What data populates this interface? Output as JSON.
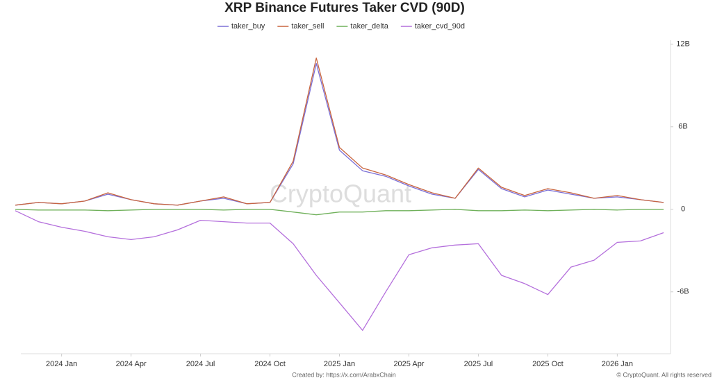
{
  "chart_data": {
    "type": "line",
    "title": "XRP Binance Futures Taker CVD (90D)",
    "watermark": "CryptoQuant",
    "credit": "Created by: https://x.com/ArabxChain",
    "copyright": "© CryptoQuant. All rights reserved",
    "x": [
      "2023-11",
      "2023-12",
      "2024-01",
      "2024-02",
      "2024-03",
      "2024-04",
      "2024-05",
      "2024-06",
      "2024-07",
      "2024-08",
      "2024-09",
      "2024-10",
      "2024-11",
      "2024-12",
      "2025-01",
      "2025-02",
      "2025-03",
      "2025-04",
      "2025-05",
      "2025-06",
      "2025-07",
      "2025-08",
      "2025-09",
      "2025-10",
      "2025-11",
      "2025-12",
      "2026-01",
      "2026-02",
      "2026-03"
    ],
    "xlim": [
      "2023-11",
      "2026-03"
    ],
    "xticks": [
      {
        "value": "2024-01",
        "label": "2024 Jan"
      },
      {
        "value": "2024-04",
        "label": "2024 Apr"
      },
      {
        "value": "2024-07",
        "label": "2024 Jul"
      },
      {
        "value": "2024-10",
        "label": "2024 Oct"
      },
      {
        "value": "2025-01",
        "label": "2025 Jan"
      },
      {
        "value": "2025-04",
        "label": "2025 Apr"
      },
      {
        "value": "2025-07",
        "label": "2025 Jul"
      },
      {
        "value": "2025-10",
        "label": "2025 Oct"
      },
      {
        "value": "2026-01",
        "label": "2026 Jan"
      }
    ],
    "ylim": [
      -10.5,
      13.2
    ],
    "yticks": [
      {
        "value": 12,
        "label": "12B"
      },
      {
        "value": 6,
        "label": "6B"
      },
      0,
      {
        "value": -6,
        "label": "-6B"
      }
    ],
    "series": [
      {
        "name": "taker_buy",
        "color": "#7b6fd6",
        "values": [
          0.3,
          0.5,
          0.4,
          0.6,
          1.1,
          0.7,
          0.4,
          0.3,
          0.6,
          0.8,
          0.4,
          0.5,
          3.3,
          10.6,
          4.3,
          2.8,
          2.4,
          1.7,
          1.1,
          0.8,
          2.9,
          1.5,
          0.9,
          1.4,
          1.1,
          0.8,
          0.9,
          0.7,
          0.5
        ]
      },
      {
        "name": "taker_sell",
        "color": "#c8653f",
        "values": [
          0.3,
          0.5,
          0.4,
          0.6,
          1.2,
          0.7,
          0.4,
          0.3,
          0.6,
          0.9,
          0.4,
          0.5,
          3.5,
          11.0,
          4.5,
          3.0,
          2.5,
          1.8,
          1.2,
          0.8,
          3.0,
          1.6,
          1.0,
          1.5,
          1.2,
          0.8,
          1.0,
          0.7,
          0.5
        ]
      },
      {
        "name": "taker_delta",
        "color": "#6fb05a",
        "values": [
          0,
          -0.05,
          -0.05,
          -0.05,
          -0.1,
          -0.05,
          0,
          0,
          0,
          -0.05,
          0,
          0,
          -0.2,
          -0.4,
          -0.2,
          -0.2,
          -0.1,
          -0.1,
          -0.05,
          0,
          -0.1,
          -0.1,
          -0.05,
          -0.1,
          -0.05,
          0,
          -0.05,
          0,
          0
        ]
      },
      {
        "name": "taker_cvd_90d",
        "color": "#b46fdc",
        "values": [
          -0.1,
          -0.9,
          -1.3,
          -1.6,
          -2.0,
          -2.2,
          -2.0,
          -1.5,
          -0.8,
          -0.9,
          -1.0,
          -1.0,
          -2.5,
          -4.8,
          -6.8,
          -8.8,
          -6.0,
          -3.3,
          -2.8,
          -2.6,
          -2.5,
          -4.8,
          -5.4,
          -6.2,
          -4.2,
          -3.7,
          -2.4,
          -2.3,
          -1.7
        ]
      }
    ]
  }
}
